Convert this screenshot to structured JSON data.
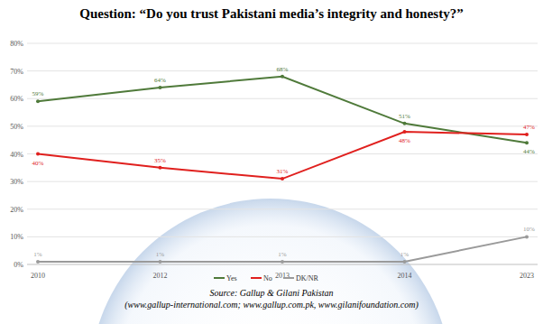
{
  "chart_data": {
    "type": "line",
    "title": "Question: “Do you trust Pakistani media’s integrity and honesty?”",
    "categories": [
      "2010",
      "2012",
      "2013",
      "2014",
      "2023"
    ],
    "series": [
      {
        "name": "Yes",
        "color": "#4f7a3a",
        "marker": "circle",
        "values": [
          59,
          64,
          68,
          51,
          44
        ],
        "value_labels": [
          "59%",
          "64%",
          "68%",
          "51%",
          "44%"
        ]
      },
      {
        "name": "No",
        "color": "#e0201e",
        "marker": "circle",
        "values": [
          40,
          35,
          31,
          48,
          47
        ],
        "value_labels": [
          "40%",
          "35%",
          "31%",
          "48%",
          "47%"
        ]
      },
      {
        "name": "DK/NR",
        "color": "#9a9a9a",
        "marker": "circle",
        "values": [
          1,
          1,
          1,
          1,
          10
        ],
        "value_labels": [
          "1%",
          "1%",
          "1%",
          "1%",
          "10%"
        ]
      }
    ],
    "ylim": [
      0,
      80
    ],
    "yticks": [
      {
        "value": 0,
        "label": "0%"
      },
      {
        "value": 10,
        "label": "10%"
      },
      {
        "value": 20,
        "label": "20%"
      },
      {
        "value": 30,
        "label": "30%"
      },
      {
        "value": 40,
        "label": "40%"
      },
      {
        "value": 50,
        "label": "50%"
      },
      {
        "value": 60,
        "label": "60%"
      },
      {
        "value": 70,
        "label": "70%"
      },
      {
        "value": 80,
        "label": "80%"
      }
    ],
    "grid": true,
    "data_labels": true,
    "legend": "bottom",
    "annotations": [
      "Source: Gallup & Gilani Pakistan",
      "(www.gallup-international.com; www.gallup.com.pk, www.gilanifoundation.com)"
    ]
  }
}
